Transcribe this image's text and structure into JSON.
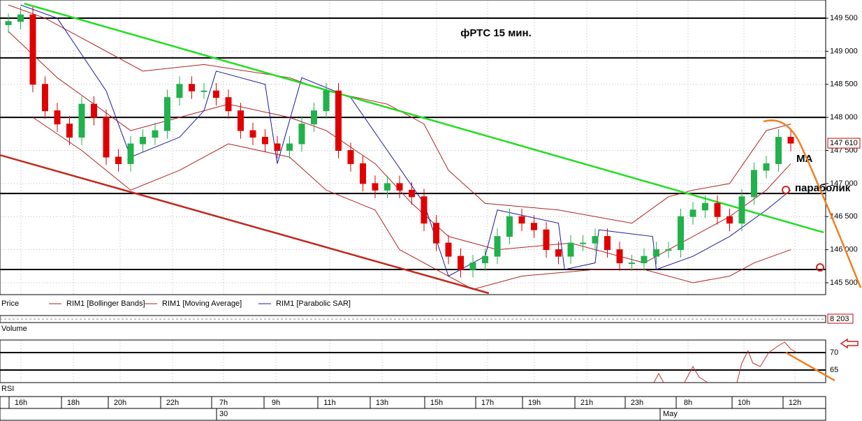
{
  "chart_data": {
    "type": "candlestick",
    "title": "фРТС   15 мин.",
    "annotations": [
      "MA",
      "параболик"
    ],
    "categories": [
      "16h",
      "18h",
      "20h",
      "22h",
      "7h",
      "9h",
      "11h",
      "13h",
      "15h",
      "17h",
      "19h",
      "21h",
      "23h",
      "8h",
      "10h",
      "12h"
    ],
    "dates": [
      "30",
      "May"
    ],
    "ylim": [
      145320,
      149775
    ],
    "yticks": [
      {
        "value": 145500,
        "label": "145 500"
      },
      {
        "value": 146000,
        "label": "146 000"
      },
      {
        "value": 146500,
        "label": "146 500"
      },
      {
        "value": 147000,
        "label": "147 000"
      },
      {
        "value": 147500,
        "label": "147 500"
      },
      {
        "value": 148000,
        "label": "148 000"
      },
      {
        "value": 148500,
        "label": "148 500"
      },
      {
        "value": 149000,
        "label": "149 000"
      },
      {
        "value": 149500,
        "label": "149 500"
      }
    ],
    "grid": true,
    "last_price": {
      "value": 147610,
      "label": "147 610"
    },
    "levels": [
      149500,
      148900,
      148000,
      146850,
      145700
    ],
    "candles": {
      "name": "Price",
      "up_color": "#22b14c",
      "down_color": "#e00000",
      "open": [
        149400,
        149450,
        149550,
        148500,
        148100,
        147900,
        147700,
        148200,
        148000,
        147400,
        147300,
        147600,
        147700,
        147800,
        148300,
        148500,
        148400,
        148400,
        148300,
        148100,
        147800,
        147700,
        147600,
        147500,
        147600,
        147900,
        148100,
        148400,
        147500,
        147300,
        147000,
        146900,
        147000,
        146900,
        146800,
        146400,
        146100,
        145900,
        145700,
        145800,
        145900,
        146200,
        146500,
        146400,
        146300,
        146000,
        145900,
        146100,
        146100,
        146200,
        146000,
        145800,
        145800,
        145900,
        146000,
        146000,
        146500,
        146600,
        146700,
        146500,
        146400,
        146800,
        147200,
        147300,
        147700
      ],
      "high": [
        149570,
        149670,
        149670,
        148620,
        148220,
        148020,
        148320,
        148320,
        148120,
        147520,
        147720,
        147820,
        147920,
        148420,
        148620,
        148620,
        148520,
        148520,
        148420,
        148220,
        147920,
        147820,
        147720,
        147720,
        148020,
        148220,
        148520,
        148520,
        147620,
        147420,
        147120,
        147120,
        147120,
        147020,
        146920,
        146520,
        146220,
        146020,
        145920,
        146020,
        146320,
        146620,
        146620,
        146520,
        146420,
        146120,
        146220,
        146220,
        146320,
        146320,
        146120,
        145920,
        146020,
        146120,
        146120,
        146620,
        146720,
        146820,
        146820,
        146620,
        146920,
        147320,
        147420,
        147820,
        147820
      ],
      "low": [
        149280,
        149330,
        148380,
        147980,
        147780,
        147580,
        147580,
        147880,
        147280,
        147180,
        147180,
        147480,
        147580,
        147680,
        148180,
        148280,
        148280,
        148180,
        147980,
        147680,
        147580,
        147480,
        147380,
        147380,
        147480,
        147780,
        147980,
        147380,
        147180,
        146880,
        146780,
        146780,
        146780,
        146680,
        146280,
        145980,
        145780,
        145580,
        145580,
        145680,
        145780,
        146080,
        146280,
        146180,
        145880,
        145780,
        145780,
        145980,
        145980,
        145880,
        145680,
        145680,
        145680,
        145780,
        145880,
        145880,
        146380,
        146480,
        146380,
        146280,
        146280,
        146680,
        147080,
        147180,
        147490
      ],
      "close": [
        149450,
        149550,
        148500,
        148100,
        147900,
        147700,
        148200,
        148000,
        147400,
        147300,
        147600,
        147700,
        147800,
        148300,
        148500,
        148400,
        148400,
        148300,
        148100,
        147800,
        147700,
        147600,
        147500,
        147600,
        147900,
        148100,
        148400,
        147500,
        147300,
        147000,
        146900,
        147000,
        146900,
        146800,
        146400,
        146100,
        145900,
        145700,
        145800,
        145900,
        146200,
        146500,
        146400,
        146300,
        146000,
        145900,
        146100,
        146100,
        146200,
        146000,
        145800,
        145800,
        145900,
        146000,
        146000,
        146500,
        146600,
        146700,
        146500,
        146400,
        146800,
        147200,
        147300,
        147700,
        147610
      ]
    },
    "overlays": [
      {
        "name": "RIM1 [Bollinger Bands]",
        "color": "#b22222",
        "lines": [
          {
            "x": [
              0,
              3,
              11,
              16,
              23,
              26,
              31,
              34,
              36,
              39,
              45,
              51,
              54,
              56,
              59,
              62,
              64
            ],
            "values": [
              149700,
              149500,
              148700,
              148800,
              148600,
              148400,
              148200,
              147900,
              147200,
              146700,
              146600,
              146400,
              146800,
              146900,
              147000,
              147800,
              147900
            ]
          },
          {
            "x": [
              2,
              6,
              10,
              14,
              18,
              23,
              26,
              30,
              32,
              35,
              38,
              42,
              48,
              52,
              56,
              59,
              61,
              64
            ],
            "values": [
              148000,
              147500,
              146900,
              147200,
              147600,
              147400,
              146900,
              146600,
              146000,
              145700,
              145400,
              145600,
              145700,
              145700,
              145500,
              145600,
              145800,
              146000
            ]
          }
        ]
      },
      {
        "name": "RIM1 [Moving Average]",
        "color": "#b22222",
        "lines": [
          {
            "x": [
              0,
              4,
              10,
              14,
              18,
              23,
              26,
              30,
              33,
              36,
              40,
              46,
              52,
              56,
              59,
              62,
              64
            ],
            "values": [
              149300,
              148600,
              147800,
              148000,
              148200,
              148000,
              147800,
              147300,
              146700,
              146200,
              146000,
              146100,
              145800,
              146200,
              146500,
              146900,
              147300
            ]
          }
        ]
      },
      {
        "name": "RIM1 [Parabolic SAR]",
        "color": "#1a1a9c",
        "lines": [
          {
            "x": [
              1,
              4,
              8,
              10,
              14,
              16,
              17,
              21,
              22,
              24,
              28,
              31,
              34,
              36,
              39,
              40,
              45,
              45.5,
              48,
              48.3,
              52.7,
              53,
              56,
              59,
              62,
              64
            ],
            "values": [
              149700,
              149500,
              148400,
              147400,
              147700,
              148100,
              148700,
              148500,
              147300,
              148600,
              148300,
              147500,
              146700,
              145600,
              145900,
              146600,
              146400,
              145700,
              145800,
              146300,
              146200,
              145700,
              145900,
              146200,
              146600,
              146900
            ]
          }
        ]
      }
    ],
    "trend_lines": [
      {
        "color": "#22dd22",
        "x": [
          1.3,
          66.7
        ],
        "values": [
          149721,
          146260
        ]
      },
      {
        "color": "#c0281c",
        "x": [
          -0.7,
          39.3
        ],
        "values": [
          147431,
          145341
        ]
      }
    ],
    "volume": {
      "label": "Volume",
      "last": {
        "value": 8203,
        "label": "8 203"
      }
    },
    "rsi": {
      "label": "RSI",
      "ylim": [
        61.4,
        73.6
      ],
      "yticks": [
        70,
        65
      ],
      "color": "#c03030",
      "x": [
        52.8,
        53.2,
        53.6,
        null,
        55.3,
        56,
        56.5,
        57.2,
        null,
        59.6,
        60,
        60.5,
        60.9,
        61.5,
        62.2,
        63,
        63.5,
        64,
        64.5
      ],
      "values": [
        61.4,
        64,
        61.4,
        null,
        61.4,
        66,
        63,
        61.4,
        null,
        61.4,
        67,
        70.5,
        67,
        66,
        70,
        72,
        73,
        71,
        70
      ]
    }
  }
}
